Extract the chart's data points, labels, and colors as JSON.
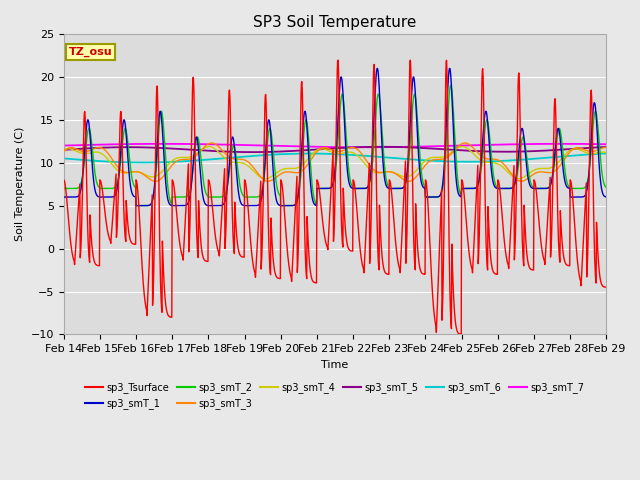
{
  "title": "SP3 Soil Temperature",
  "xlabel": "Time",
  "ylabel": "Soil Temperature (C)",
  "ylim": [
    -10,
    25
  ],
  "tz_label": "TZ_osu",
  "plot_bg": "#dcdcdc",
  "fig_bg": "#e8e8e8",
  "series_colors": {
    "sp3_Tsurface": "#ff0000",
    "sp3_smT_1": "#0000cc",
    "sp3_smT_2": "#00cc00",
    "sp3_smT_3": "#ff8800",
    "sp3_smT_4": "#cccc00",
    "sp3_smT_5": "#880088",
    "sp3_smT_6": "#00cccc",
    "sp3_smT_7": "#ff00ff"
  },
  "legend_order": [
    "sp3_Tsurface",
    "sp3_smT_1",
    "sp3_smT_2",
    "sp3_smT_3",
    "sp3_smT_4",
    "sp3_smT_5",
    "sp3_smT_6",
    "sp3_smT_7"
  ],
  "x_tick_labels": [
    "Feb 14",
    "Feb 15",
    "Feb 16",
    "Feb 17",
    "Feb 18",
    "Feb 19",
    "Feb 20",
    "Feb 21",
    "Feb 22",
    "Feb 23",
    "Feb 24",
    "Feb 25",
    "Feb 26",
    "Feb 27",
    "Feb 28",
    "Feb 29"
  ]
}
